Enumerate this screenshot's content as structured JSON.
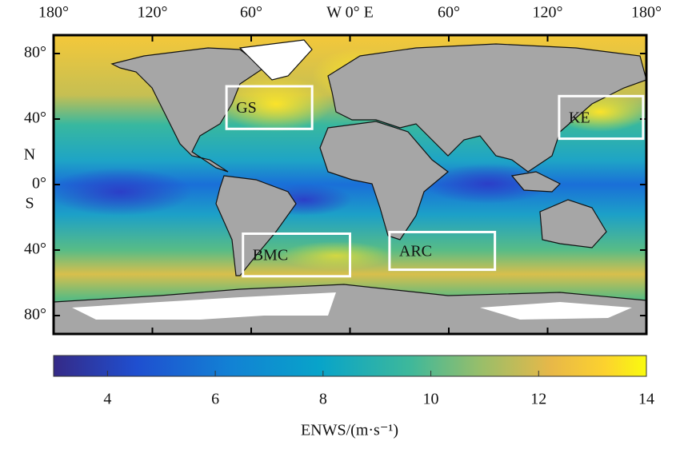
{
  "map": {
    "lon_ticks": [
      {
        "value": -180,
        "label": "180°"
      },
      {
        "value": -120,
        "label": "120°"
      },
      {
        "value": -60,
        "label": "60°"
      },
      {
        "value": 0,
        "label": "W 0° E"
      },
      {
        "value": 60,
        "label": "60°"
      },
      {
        "value": 120,
        "label": "120°"
      },
      {
        "value": 180,
        "label": "180°"
      }
    ],
    "lat_ticks": [
      {
        "value": 80,
        "label": "80°"
      },
      {
        "value": 40,
        "label": "40°"
      },
      {
        "value": 0,
        "label": "0°"
      },
      {
        "value": -40,
        "label": "40°"
      },
      {
        "value": -80,
        "label": "80°"
      }
    ],
    "north_label": "N",
    "south_label": "S",
    "regions": [
      {
        "label": "GS",
        "lon": [
          -75,
          -23
        ],
        "lat": [
          34,
          60
        ]
      },
      {
        "label": "KE",
        "lon": [
          127,
          178
        ],
        "lat": [
          28,
          54
        ]
      },
      {
        "label": "BMC",
        "lon": [
          -65,
          0
        ],
        "lat": [
          -56,
          -30
        ]
      },
      {
        "label": "ARC",
        "lon": [
          24,
          88
        ],
        "lat": [
          -52,
          -29
        ]
      }
    ]
  },
  "colorbar": {
    "clim": [
      3,
      14
    ],
    "ticks": [
      4,
      6,
      8,
      10,
      12,
      14
    ],
    "label": "ENWS/(m·s⁻¹)"
  }
}
